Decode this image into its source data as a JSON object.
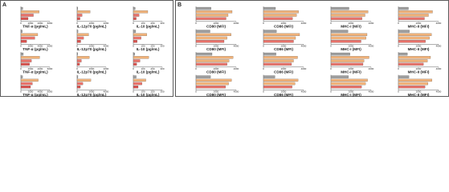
{
  "panel_labels": [
    "A",
    "B"
  ],
  "chart_data": [
    {
      "type": "bar",
      "xlabel": "TNF-α (pg/mL)",
      "values": [
        400,
        3800,
        2600,
        1500
      ],
      "colors": [
        "#9e9e9e",
        "#f0b27a",
        "#e8736b",
        "#d9534f"
      ],
      "xlim": [
        0,
        6000
      ],
      "xticks": [
        0,
        2000,
        4000,
        6000
      ]
    },
    {
      "type": "bar",
      "xlabel": "IL-12p70 (pg/mL)",
      "values": [
        100,
        1800,
        700,
        400
      ],
      "colors": [
        "#9e9e9e",
        "#f0b27a",
        "#e8736b",
        "#d9534f"
      ],
      "xlim": [
        0,
        4000
      ],
      "xticks": [
        0,
        2000,
        4000
      ]
    },
    {
      "type": "bar",
      "xlabel": "IL-10 (pg/mL)",
      "values": [
        20,
        150,
        60,
        30
      ],
      "colors": [
        "#9e9e9e",
        "#f0b27a",
        "#e8736b",
        "#d9534f"
      ],
      "xlim": [
        0,
        300
      ],
      "xticks": [
        0,
        100,
        200,
        300
      ]
    },
    {
      "type": "bar",
      "xlabel": "TNF-α (pg/mL)",
      "values": [
        300,
        3500,
        2900,
        1200
      ],
      "colors": [
        "#9e9e9e",
        "#f0b27a",
        "#e8736b",
        "#d9534f"
      ],
      "xlim": [
        0,
        6000
      ],
      "xticks": [
        0,
        2000,
        4000,
        6000
      ]
    },
    {
      "type": "bar",
      "xlabel": "IL-12p70 (pg/mL)",
      "values": [
        120,
        1600,
        900,
        500
      ],
      "colors": [
        "#9e9e9e",
        "#f0b27a",
        "#e8736b",
        "#d9534f"
      ],
      "xlim": [
        0,
        4000
      ],
      "xticks": [
        0,
        2000,
        4000
      ]
    },
    {
      "type": "bar",
      "xlabel": "IL-10 (pg/mL)",
      "values": [
        25,
        140,
        80,
        40
      ],
      "colors": [
        "#9e9e9e",
        "#f0b27a",
        "#e8736b",
        "#d9534f"
      ],
      "xlim": [
        0,
        300
      ],
      "xticks": [
        0,
        100,
        200,
        300
      ]
    },
    {
      "type": "bar",
      "xlabel": "TNF-α (pg/mL)",
      "values": [
        500,
        3900,
        2200,
        1800
      ],
      "colors": [
        "#9e9e9e",
        "#f0b27a",
        "#e8736b",
        "#d9534f"
      ],
      "xlim": [
        0,
        6000
      ],
      "xticks": [
        0,
        2000,
        4000,
        6000
      ]
    },
    {
      "type": "bar",
      "xlabel": "IL-12p70 (pg/mL)",
      "values": [
        90,
        1700,
        600,
        350
      ],
      "colors": [
        "#9e9e9e",
        "#f0b27a",
        "#e8736b",
        "#d9534f"
      ],
      "xlim": [
        0,
        4000
      ],
      "xticks": [
        0,
        2000,
        4000
      ]
    },
    {
      "type": "bar",
      "xlabel": "IL-10 (pg/mL)",
      "values": [
        15,
        160,
        70,
        35
      ],
      "colors": [
        "#9e9e9e",
        "#f0b27a",
        "#e8736b",
        "#d9534f"
      ],
      "xlim": [
        0,
        300
      ],
      "xticks": [
        0,
        100,
        200,
        300
      ]
    },
    {
      "type": "bar",
      "xlabel": "TNF-α (pg/mL)",
      "values": [
        350,
        3600,
        2400,
        2000
      ],
      "colors": [
        "#9e9e9e",
        "#f0b27a",
        "#e8736b",
        "#d9534f"
      ],
      "xlim": [
        0,
        6000
      ],
      "xticks": [
        0,
        2000,
        4000,
        6000
      ]
    },
    {
      "type": "bar",
      "xlabel": "IL-12p70 (pg/mL)",
      "values": [
        110,
        1900,
        800,
        450
      ],
      "colors": [
        "#9e9e9e",
        "#f0b27a",
        "#e8736b",
        "#d9534f"
      ],
      "xlim": [
        0,
        4000
      ],
      "xticks": [
        0,
        2000,
        4000
      ]
    },
    {
      "type": "bar",
      "xlabel": "IL-10 (pg/mL)",
      "values": [
        30,
        130,
        90,
        50
      ],
      "colors": [
        "#9e9e9e",
        "#f0b27a",
        "#e8736b",
        "#d9534f"
      ],
      "xlim": [
        0,
        300
      ],
      "xticks": [
        0,
        100,
        200,
        300
      ]
    },
    {
      "type": "bar",
      "xlabel": "CD80 (MFI)",
      "values": [
        1500,
        3600,
        3200,
        3000
      ],
      "colors": [
        "#9e9e9e",
        "#f0b27a",
        "#f0b27a",
        "#e8736b"
      ],
      "xlim": [
        0,
        4000
      ],
      "xticks": [
        0,
        2000,
        4000
      ]
    },
    {
      "type": "bar",
      "xlabel": "CD86 (MFI)",
      "values": [
        1200,
        3500,
        3300,
        2900
      ],
      "colors": [
        "#9e9e9e",
        "#f0b27a",
        "#f0b27a",
        "#e8736b"
      ],
      "xlim": [
        0,
        4000
      ],
      "xticks": [
        0,
        2000,
        4000
      ]
    },
    {
      "type": "bar",
      "xlabel": "MHC-I (MFI)",
      "values": [
        1800,
        3700,
        3400,
        3100
      ],
      "colors": [
        "#9e9e9e",
        "#f0b27a",
        "#f0b27a",
        "#e8736b"
      ],
      "xlim": [
        0,
        4000
      ],
      "xticks": [
        0,
        2000,
        4000
      ]
    },
    {
      "type": "bar",
      "xlabel": "MHC-II (MFI)",
      "values": [
        1000,
        3400,
        3000,
        2600
      ],
      "colors": [
        "#9e9e9e",
        "#f0b27a",
        "#f0b27a",
        "#e8736b"
      ],
      "xlim": [
        0,
        4000
      ],
      "xticks": [
        0,
        2000,
        4000
      ]
    },
    {
      "type": "bar",
      "xlabel": "CD80 (MFI)",
      "values": [
        1400,
        3500,
        3100,
        2800
      ],
      "colors": [
        "#9e9e9e",
        "#f0b27a",
        "#f0b27a",
        "#e8736b"
      ],
      "xlim": [
        0,
        4000
      ],
      "xticks": [
        0,
        2000,
        4000
      ]
    },
    {
      "type": "bar",
      "xlabel": "CD86 (MFI)",
      "values": [
        1300,
        3600,
        3200,
        3000
      ],
      "colors": [
        "#9e9e9e",
        "#f0b27a",
        "#f0b27a",
        "#e8736b"
      ],
      "xlim": [
        0,
        4000
      ],
      "xticks": [
        0,
        2000,
        4000
      ]
    },
    {
      "type": "bar",
      "xlabel": "MHC-I (MFI)",
      "values": [
        1700,
        3600,
        3500,
        3000
      ],
      "colors": [
        "#9e9e9e",
        "#f0b27a",
        "#f0b27a",
        "#e8736b"
      ],
      "xlim": [
        0,
        4000
      ],
      "xticks": [
        0,
        2000,
        4000
      ]
    },
    {
      "type": "bar",
      "xlabel": "MHC-II (MFI)",
      "values": [
        1100,
        3300,
        3100,
        2700
      ],
      "colors": [
        "#9e9e9e",
        "#f0b27a",
        "#f0b27a",
        "#e8736b"
      ],
      "xlim": [
        0,
        4000
      ],
      "xticks": [
        0,
        2000,
        4000
      ]
    },
    {
      "type": "bar",
      "xlabel": "CD80 (MFI)",
      "values": [
        1600,
        3700,
        3300,
        3100
      ],
      "colors": [
        "#9e9e9e",
        "#f0b27a",
        "#f0b27a",
        "#e8736b"
      ],
      "xlim": [
        0,
        4000
      ],
      "xticks": [
        0,
        2000,
        4000
      ]
    },
    {
      "type": "bar",
      "xlabel": "CD86 (MFI)",
      "values": [
        1250,
        3400,
        3000,
        2800
      ],
      "colors": [
        "#9e9e9e",
        "#f0b27a",
        "#f0b27a",
        "#e8736b"
      ],
      "xlim": [
        0,
        4000
      ],
      "xticks": [
        0,
        2000,
        4000
      ]
    },
    {
      "type": "bar",
      "xlabel": "MHC-I (MFI)",
      "values": [
        1900,
        3800,
        3300,
        3200
      ],
      "colors": [
        "#9e9e9e",
        "#f0b27a",
        "#f0b27a",
        "#e8736b"
      ],
      "xlim": [
        0,
        4000
      ],
      "xticks": [
        0,
        2000,
        4000
      ]
    },
    {
      "type": "bar",
      "xlabel": "MHC-II (MFI)",
      "values": [
        900,
        3200,
        2900,
        2500
      ],
      "colors": [
        "#9e9e9e",
        "#f0b27a",
        "#f0b27a",
        "#e8736b"
      ],
      "xlim": [
        0,
        4000
      ],
      "xticks": [
        0,
        2000,
        4000
      ]
    },
    {
      "type": "bar",
      "xlabel": "CD80 (MFI)",
      "values": [
        1450,
        3550,
        3250,
        2950
      ],
      "colors": [
        "#9e9e9e",
        "#f0b27a",
        "#f0b27a",
        "#e8736b"
      ],
      "xlim": [
        0,
        4000
      ],
      "xticks": [
        0,
        2000,
        4000
      ]
    },
    {
      "type": "bar",
      "xlabel": "CD86 (MFI)",
      "values": [
        1150,
        3450,
        3150,
        2850
      ],
      "colors": [
        "#9e9e9e",
        "#f0b27a",
        "#f0b27a",
        "#e8736b"
      ],
      "xlim": [
        0,
        4000
      ],
      "xticks": [
        0,
        2000,
        4000
      ]
    },
    {
      "type": "bar",
      "xlabel": "MHC-I (MFI)",
      "values": [
        1750,
        3650,
        3450,
        3050
      ],
      "colors": [
        "#9e9e9e",
        "#f0b27a",
        "#f0b27a",
        "#e8736b"
      ],
      "xlim": [
        0,
        4000
      ],
      "xticks": [
        0,
        2000,
        4000
      ]
    },
    {
      "type": "bar",
      "xlabel": "MHC-II (MFI)",
      "values": [
        1050,
        3350,
        2950,
        2650
      ],
      "colors": [
        "#9e9e9e",
        "#f0b27a",
        "#f0b27a",
        "#e8736b"
      ],
      "xlim": [
        0,
        4000
      ],
      "xticks": [
        0,
        2000,
        4000
      ]
    }
  ]
}
